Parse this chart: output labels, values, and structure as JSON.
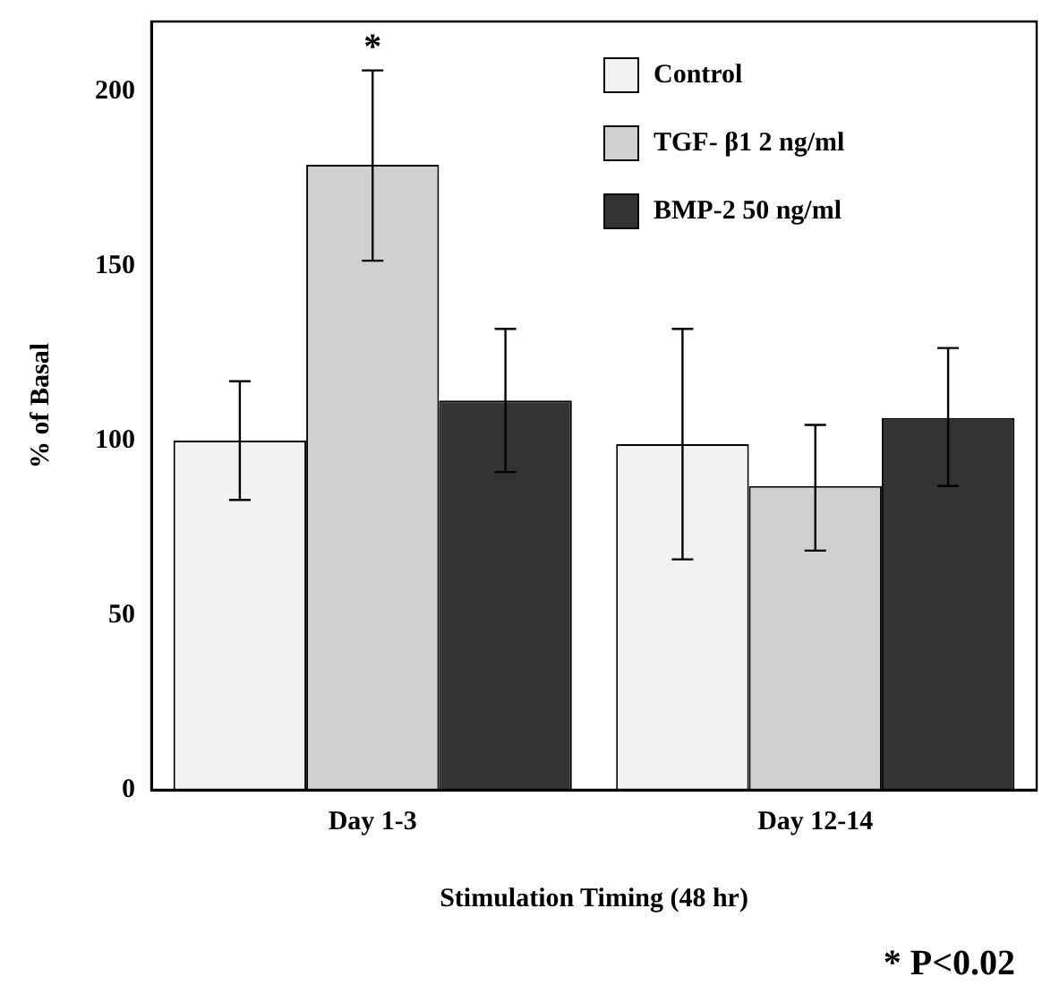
{
  "chart_data": {
    "type": "bar",
    "xlabel": "Stimulation Timing (48 hr)",
    "ylabel": "% of Basal",
    "categories": [
      "Day 1-3",
      "Day 12-14"
    ],
    "series": [
      {
        "name": "Control",
        "color": "#f2f2f2",
        "values": [
          100,
          99
        ],
        "errors": [
          [
            83,
            117
          ],
          [
            66,
            132
          ]
        ]
      },
      {
        "name": "TGF- β1 2 ng/ml",
        "color": "#d0d0d0",
        "values": [
          179,
          87
        ],
        "errors": [
          [
            151.5,
            206
          ],
          [
            68.5,
            104.5
          ]
        ]
      },
      {
        "name": "BMP-2 50 ng/ml",
        "color": "#333333",
        "values": [
          111.5,
          106.5
        ],
        "errors": [
          [
            91,
            132
          ],
          [
            87,
            126.5
          ]
        ]
      }
    ],
    "ylim": [
      0,
      220
    ],
    "yticks": [
      0,
      50,
      100,
      150,
      200
    ],
    "grid": false,
    "legend": "top right",
    "annotations": [
      "*",
      "* P<0.02"
    ]
  }
}
